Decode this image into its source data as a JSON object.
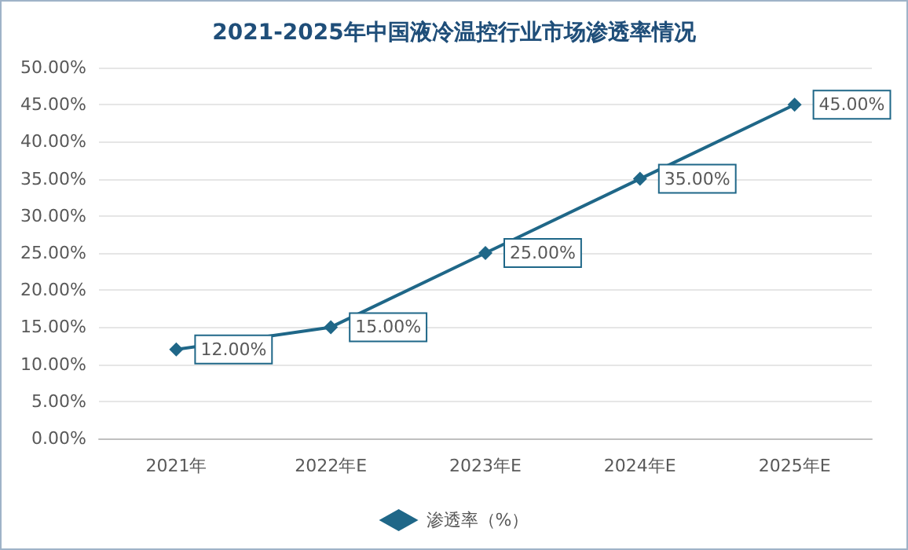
{
  "chart_data": {
    "type": "line",
    "title": "2021-2025年中国液冷温控行业市场渗透率情况",
    "categories": [
      "2021年",
      "2022年E",
      "2023年E",
      "2024年E",
      "2025年E"
    ],
    "series": [
      {
        "name": "渗透率（%）",
        "color": "#1f6788",
        "values": [
          12,
          15,
          25,
          35,
          45
        ],
        "value_labels": [
          "12.00%",
          "15.00%",
          "25.00%",
          "35.00%",
          "45.00%"
        ]
      }
    ],
    "ylim": [
      0,
      50
    ],
    "yticks": [
      {
        "value": 0,
        "label": "0.00%"
      },
      {
        "value": 5,
        "label": "5.00%"
      },
      {
        "value": 10,
        "label": "10.00%"
      },
      {
        "value": 15,
        "label": "15.00%"
      },
      {
        "value": 20,
        "label": "20.00%"
      },
      {
        "value": 25,
        "label": "25.00%"
      },
      {
        "value": 30,
        "label": "30.00%"
      },
      {
        "value": 35,
        "label": "35.00%"
      },
      {
        "value": 40,
        "label": "40.00%"
      },
      {
        "value": 45,
        "label": "45.00%"
      },
      {
        "value": 50,
        "label": "50.00%"
      }
    ],
    "grid": "y",
    "legend": "bottom",
    "marker": "diamond",
    "line_style": "solid"
  }
}
